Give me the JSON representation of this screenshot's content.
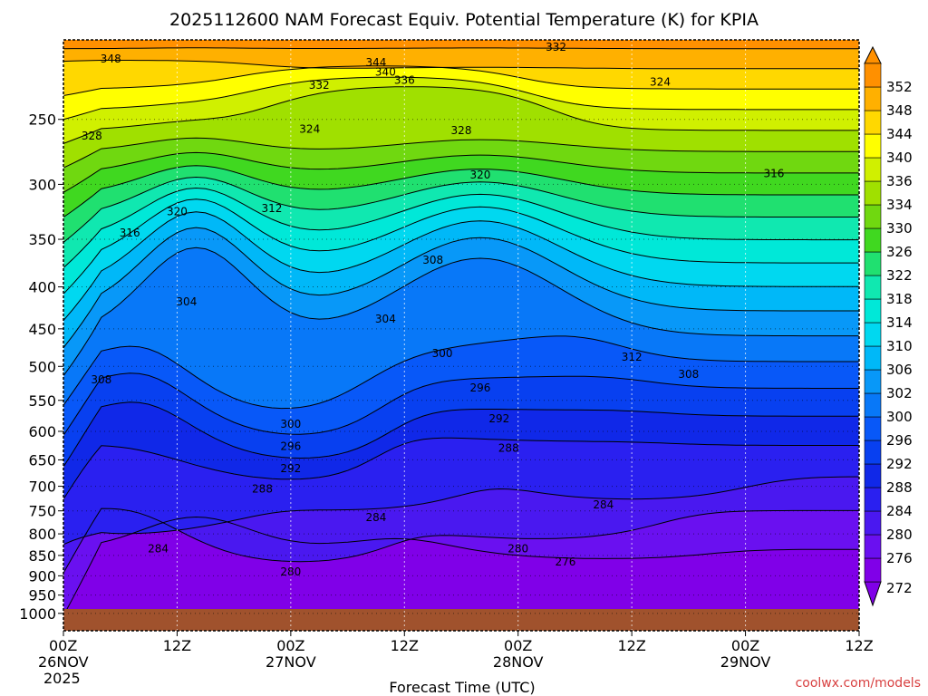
{
  "chart_data": {
    "type": "heatmap",
    "title": "2025112600 NAM Forecast Equiv. Potential Temperature (K) for KPIA",
    "xlabel": "Forecast Time (UTC)",
    "ylabel": "",
    "credit": "coolwx.com/models",
    "x_ticks": [
      {
        "hours": 0,
        "label": "00Z",
        "date": "26NOV",
        "year": "2025"
      },
      {
        "hours": 12,
        "label": "12Z",
        "date": "",
        "year": ""
      },
      {
        "hours": 24,
        "label": "00Z",
        "date": "27NOV",
        "year": ""
      },
      {
        "hours": 36,
        "label": "12Z",
        "date": "",
        "year": ""
      },
      {
        "hours": 48,
        "label": "00Z",
        "date": "28NOV",
        "year": ""
      },
      {
        "hours": 60,
        "label": "12Z",
        "date": "",
        "year": ""
      },
      {
        "hours": 72,
        "label": "00Z",
        "date": "29NOV",
        "year": ""
      },
      {
        "hours": 84,
        "label": "12Z",
        "date": "",
        "year": ""
      }
    ],
    "x_range_hours": [
      0,
      84
    ],
    "y_ticks": [
      250,
      300,
      350,
      400,
      450,
      500,
      550,
      600,
      650,
      700,
      750,
      800,
      850,
      900,
      950,
      1000
    ],
    "y_range": [
      200,
      1050
    ],
    "y_scale": "log",
    "grid": true,
    "colorbar": {
      "levels": [
        272,
        276,
        280,
        284,
        288,
        292,
        296,
        300,
        302,
        306,
        310,
        314,
        318,
        322,
        326,
        330,
        334,
        336,
        340,
        344,
        348,
        352
      ],
      "colors": [
        "#8000e8",
        "#6a10f0",
        "#4a18f0",
        "#2a20f0",
        "#1028e8",
        "#0840f0",
        "#0858f8",
        "#0878f8",
        "#0898f8",
        "#00b8f8",
        "#00d8f0",
        "#00e8d8",
        "#10e8b0",
        "#20e070",
        "#40d820",
        "#70d810",
        "#a0e000",
        "#d0f000",
        "#ffff00",
        "#ffd800",
        "#ffb000",
        "#ff9000"
      ],
      "extend": "both"
    },
    "contour_labels": [
      {
        "value": 348,
        "hours": 5,
        "p": 211
      },
      {
        "value": 344,
        "hours": 33,
        "p": 213
      },
      {
        "value": 340,
        "hours": 34,
        "p": 219
      },
      {
        "value": 336,
        "hours": 36,
        "p": 224
      },
      {
        "value": 332,
        "hours": 27,
        "p": 227
      },
      {
        "value": 332,
        "hours": 52,
        "p": 204
      },
      {
        "value": 324,
        "hours": 63,
        "p": 225
      },
      {
        "value": 324,
        "hours": 26,
        "p": 257
      },
      {
        "value": 328,
        "hours": 3,
        "p": 262
      },
      {
        "value": 328,
        "hours": 42,
        "p": 258
      },
      {
        "value": 320,
        "hours": 44,
        "p": 292
      },
      {
        "value": 316,
        "hours": 75,
        "p": 291
      },
      {
        "value": 320,
        "hours": 12,
        "p": 324
      },
      {
        "value": 312,
        "hours": 22,
        "p": 321
      },
      {
        "value": 316,
        "hours": 7,
        "p": 344
      },
      {
        "value": 308,
        "hours": 39,
        "p": 371
      },
      {
        "value": 304,
        "hours": 13,
        "p": 417
      },
      {
        "value": 304,
        "hours": 34,
        "p": 438
      },
      {
        "value": 300,
        "hours": 40,
        "p": 482
      },
      {
        "value": 312,
        "hours": 60,
        "p": 487
      },
      {
        "value": 308,
        "hours": 4,
        "p": 519
      },
      {
        "value": 308,
        "hours": 66,
        "p": 511
      },
      {
        "value": 296,
        "hours": 44,
        "p": 531
      },
      {
        "value": 300,
        "hours": 24,
        "p": 588
      },
      {
        "value": 292,
        "hours": 46,
        "p": 579
      },
      {
        "value": 296,
        "hours": 24,
        "p": 626
      },
      {
        "value": 288,
        "hours": 47,
        "p": 629
      },
      {
        "value": 292,
        "hours": 24,
        "p": 666
      },
      {
        "value": 288,
        "hours": 21,
        "p": 705
      },
      {
        "value": 284,
        "hours": 57,
        "p": 737
      },
      {
        "value": 284,
        "hours": 33,
        "p": 764
      },
      {
        "value": 284,
        "hours": 10,
        "p": 834
      },
      {
        "value": 280,
        "hours": 48,
        "p": 834
      },
      {
        "value": 276,
        "hours": 53,
        "p": 866
      },
      {
        "value": 280,
        "hours": 24,
        "p": 890
      }
    ]
  }
}
